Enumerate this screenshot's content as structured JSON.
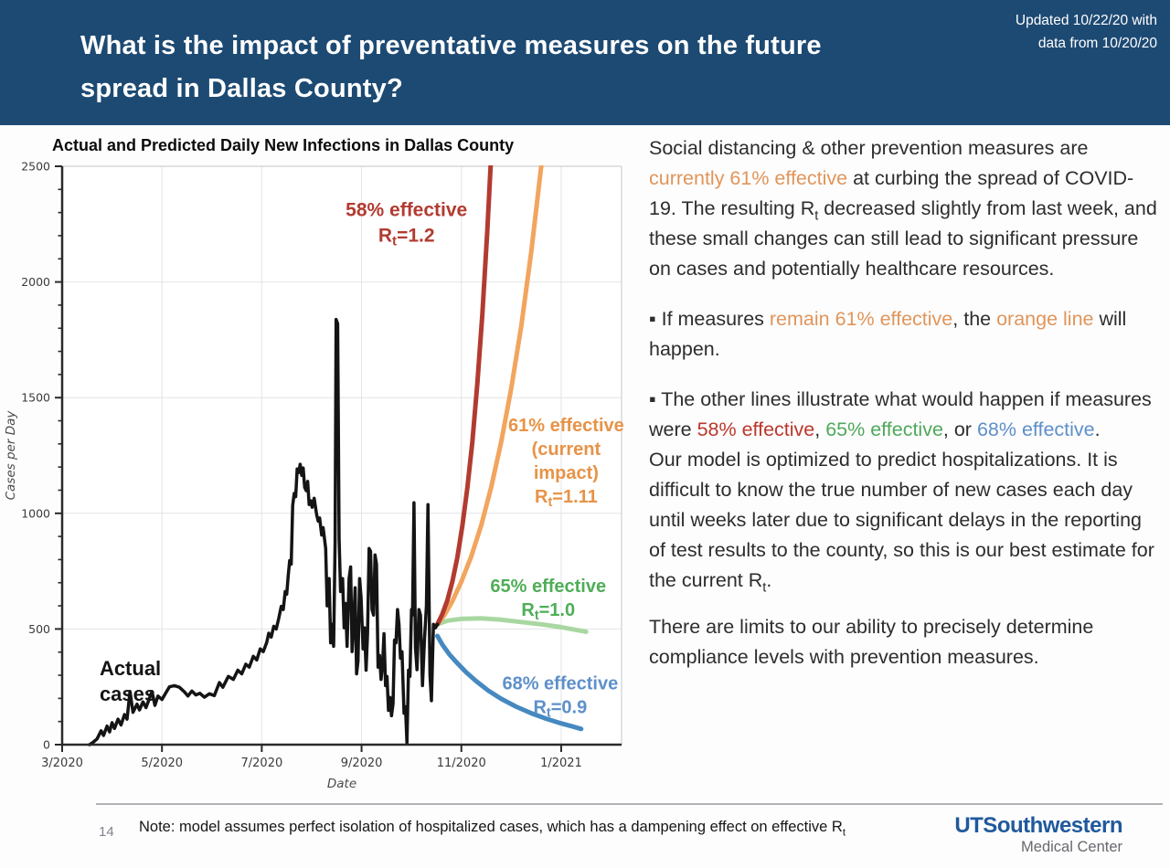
{
  "header": {
    "title": "What is the impact of preventative measures on the future\nspread in Dallas County?",
    "updated": "Updated 10/22/20 with\ndata from 10/20/20",
    "bg_color": "#1d4a73"
  },
  "chart_data": {
    "type": "line",
    "title": "Actual and Predicted Daily New Infections in Dallas County",
    "xlabel": "Date",
    "ylabel": "Cases per Day",
    "x_domain": [
      0,
      11.21
    ],
    "y_domain": [
      0,
      2500
    ],
    "x_ticks": [
      {
        "m": 0,
        "label": "3/2020"
      },
      {
        "m": 2,
        "label": "5/2020"
      },
      {
        "m": 4,
        "label": "7/2020"
      },
      {
        "m": 6,
        "label": "9/2020"
      },
      {
        "m": 8,
        "label": "11/2020"
      },
      {
        "m": 10,
        "label": "1/2021"
      }
    ],
    "y_ticks": [
      0,
      500,
      1000,
      1500,
      2000,
      2500
    ],
    "y_minor_step": 100,
    "grid": true,
    "legend_position": "none",
    "grid_color": "#e4e4e7",
    "axis_color": "#2a2a2a",
    "border_color": "#cfcfd2",
    "series": [
      {
        "name": "65% effective Rt=1.0",
        "color": "#a9d7a1",
        "width": 5,
        "points": [
          [
            7.52,
            520
          ],
          [
            7.72,
            536
          ],
          [
            8.0,
            544
          ],
          [
            8.4,
            546
          ],
          [
            8.8,
            540
          ],
          [
            9.2,
            530
          ],
          [
            9.6,
            520
          ],
          [
            10.0,
            508
          ],
          [
            10.3,
            496
          ],
          [
            10.5,
            488
          ]
        ]
      },
      {
        "name": "68% effective Rt=0.9",
        "color": "#4589c0",
        "width": 5,
        "points": [
          [
            7.52,
            470
          ],
          [
            7.62,
            432
          ],
          [
            7.76,
            390
          ],
          [
            7.92,
            352
          ],
          [
            8.1,
            312
          ],
          [
            8.3,
            274
          ],
          [
            8.55,
            232
          ],
          [
            8.8,
            198
          ],
          [
            9.1,
            164
          ],
          [
            9.4,
            136
          ],
          [
            9.7,
            112
          ],
          [
            10.0,
            92
          ],
          [
            10.2,
            80
          ],
          [
            10.4,
            68
          ]
        ]
      },
      {
        "name": "61% effective (current impact) Rt=1.11",
        "color": "#f2a55e",
        "width": 5,
        "points": [
          [
            7.52,
            520
          ],
          [
            7.66,
            560
          ],
          [
            7.82,
            620
          ],
          [
            8.0,
            705
          ],
          [
            8.2,
            815
          ],
          [
            8.4,
            950
          ],
          [
            8.6,
            1115
          ],
          [
            8.8,
            1310
          ],
          [
            9.0,
            1540
          ],
          [
            9.2,
            1810
          ],
          [
            9.4,
            2130
          ],
          [
            9.6,
            2500
          ],
          [
            9.66,
            2600
          ]
        ]
      },
      {
        "name": "58% effective Rt=1.2",
        "color": "#b23b30",
        "width": 5,
        "points": [
          [
            7.52,
            520
          ],
          [
            7.62,
            565
          ],
          [
            7.72,
            625
          ],
          [
            7.82,
            705
          ],
          [
            7.92,
            810
          ],
          [
            8.02,
            945
          ],
          [
            8.12,
            1110
          ],
          [
            8.22,
            1310
          ],
          [
            8.32,
            1560
          ],
          [
            8.42,
            1860
          ],
          [
            8.52,
            2220
          ],
          [
            8.6,
            2560
          ]
        ]
      },
      {
        "name": "Actual cases",
        "color": "#141414",
        "width": 3.5,
        "points": [
          [
            0.55,
            0
          ],
          [
            0.62,
            10
          ],
          [
            0.7,
            25
          ],
          [
            0.78,
            60
          ],
          [
            0.83,
            40
          ],
          [
            0.9,
            80
          ],
          [
            0.95,
            55
          ],
          [
            1.0,
            95
          ],
          [
            1.05,
            70
          ],
          [
            1.12,
            110
          ],
          [
            1.18,
            85
          ],
          [
            1.25,
            130
          ],
          [
            1.3,
            110
          ],
          [
            1.36,
            230
          ],
          [
            1.42,
            140
          ],
          [
            1.5,
            175
          ],
          [
            1.55,
            150
          ],
          [
            1.62,
            185
          ],
          [
            1.68,
            160
          ],
          [
            1.74,
            195
          ],
          [
            1.8,
            230
          ],
          [
            1.86,
            170
          ],
          [
            1.92,
            210
          ],
          [
            2.0,
            195
          ],
          [
            2.08,
            225
          ],
          [
            2.15,
            250
          ],
          [
            2.25,
            255
          ],
          [
            2.35,
            248
          ],
          [
            2.45,
            228
          ],
          [
            2.52,
            210
          ],
          [
            2.6,
            232
          ],
          [
            2.68,
            215
          ],
          [
            2.76,
            222
          ],
          [
            2.85,
            205
          ],
          [
            2.95,
            220
          ],
          [
            3.05,
            212
          ],
          [
            3.15,
            268
          ],
          [
            3.22,
            248
          ],
          [
            3.33,
            295
          ],
          [
            3.43,
            282
          ],
          [
            3.52,
            322
          ],
          [
            3.6,
            306
          ],
          [
            3.68,
            348
          ],
          [
            3.75,
            335
          ],
          [
            3.83,
            382
          ],
          [
            3.9,
            366
          ],
          [
            3.97,
            414
          ],
          [
            4.03,
            402
          ],
          [
            4.1,
            442
          ],
          [
            4.14,
            482
          ],
          [
            4.19,
            465
          ],
          [
            4.24,
            512
          ],
          [
            4.29,
            500
          ],
          [
            4.34,
            545
          ],
          [
            4.39,
            598
          ],
          [
            4.43,
            584
          ],
          [
            4.47,
            662
          ],
          [
            4.5,
            650
          ],
          [
            4.53,
            730
          ],
          [
            4.56,
            796
          ],
          [
            4.59,
            780
          ],
          [
            4.62,
            1034
          ],
          [
            4.65,
            1086
          ],
          [
            4.68,
            1072
          ],
          [
            4.71,
            1192
          ],
          [
            4.74,
            1176
          ],
          [
            4.77,
            1212
          ],
          [
            4.8,
            1164
          ],
          [
            4.83,
            1196
          ],
          [
            4.86,
            1112
          ],
          [
            4.89,
            1098
          ],
          [
            4.92,
            1138
          ],
          [
            4.95,
            1038
          ],
          [
            4.98,
            1054
          ],
          [
            5.01,
            1026
          ],
          [
            5.05,
            1065
          ],
          [
            5.1,
            994
          ],
          [
            5.13,
            966
          ],
          [
            5.16,
            980
          ],
          [
            5.2,
            906
          ],
          [
            5.23,
            938
          ],
          [
            5.28,
            848
          ],
          [
            5.31,
            600
          ],
          [
            5.35,
            718
          ],
          [
            5.38,
            440
          ],
          [
            5.41,
            520
          ],
          [
            5.44,
            425
          ],
          [
            5.47,
            875
          ],
          [
            5.49,
            1838
          ],
          [
            5.52,
            1820
          ],
          [
            5.55,
            888
          ],
          [
            5.58,
            662
          ],
          [
            5.62,
            718
          ],
          [
            5.65,
            505
          ],
          [
            5.68,
            610
          ],
          [
            5.71,
            425
          ],
          [
            5.75,
            718
          ],
          [
            5.78,
            768
          ],
          [
            5.81,
            402
          ],
          [
            5.84,
            520
          ],
          [
            5.87,
            678
          ],
          [
            5.9,
            306
          ],
          [
            5.93,
            362
          ],
          [
            5.96,
            718
          ],
          [
            5.99,
            638
          ],
          [
            6.03,
            414
          ],
          [
            6.06,
            505
          ],
          [
            6.09,
            322
          ],
          [
            6.12,
            480
          ],
          [
            6.15,
            848
          ],
          [
            6.18,
            836
          ],
          [
            6.21,
            584
          ],
          [
            6.24,
            560
          ],
          [
            6.27,
            820
          ],
          [
            6.3,
            780
          ],
          [
            6.33,
            335
          ],
          [
            6.36,
            386
          ],
          [
            6.39,
            282
          ],
          [
            6.42,
            346
          ],
          [
            6.45,
            480
          ],
          [
            6.48,
            255
          ],
          [
            6.51,
            295
          ],
          [
            6.54,
            148
          ],
          [
            6.57,
            204
          ],
          [
            6.6,
            125
          ],
          [
            6.63,
            176
          ],
          [
            6.66,
            452
          ],
          [
            6.69,
            440
          ],
          [
            6.72,
            584
          ],
          [
            6.75,
            520
          ],
          [
            6.78,
            374
          ],
          [
            6.81,
            402
          ],
          [
            6.85,
            136
          ],
          [
            6.88,
            164
          ],
          [
            6.91,
            8
          ],
          [
            6.94,
            322
          ],
          [
            6.97,
            295
          ],
          [
            7.0,
            584
          ],
          [
            7.02,
            560
          ],
          [
            7.05,
            1046
          ],
          [
            7.08,
            420
          ],
          [
            7.11,
            324
          ],
          [
            7.15,
            584
          ],
          [
            7.18,
            560
          ],
          [
            7.22,
            255
          ],
          [
            7.26,
            454
          ],
          [
            7.3,
            600
          ],
          [
            7.33,
            1038
          ],
          [
            7.37,
            300
          ],
          [
            7.4,
            190
          ],
          [
            7.44,
            520
          ],
          [
            7.48,
            505
          ],
          [
            7.52,
            520
          ]
        ]
      }
    ],
    "annotations": [
      {
        "lines": [
          "Actual",
          "cases"
        ],
        "color": "#141414",
        "m": 0.75,
        "c": 300,
        "anchor": "start",
        "size": 22,
        "lh": 28
      },
      {
        "lines": [
          "58% effective",
          "R[t]=1.2"
        ],
        "color": "#b23b30",
        "m": 6.9,
        "c": 2285,
        "anchor": "middle",
        "size": 21,
        "lh": 28
      },
      {
        "lines": [
          "61% effective",
          "(current",
          "impact)",
          "R[t]=1.11"
        ],
        "color": "#e79347",
        "m": 10.1,
        "c": 1355,
        "anchor": "middle",
        "size": 20,
        "lh": 26
      },
      {
        "lines": [
          "65% effective",
          "R[t]=1.0"
        ],
        "color": "#4fae57",
        "m": 9.74,
        "c": 660,
        "anchor": "middle",
        "size": 20,
        "lh": 26
      },
      {
        "lines": [
          "68% effective",
          "R[t]=0.9"
        ],
        "color": "#5d90ca",
        "m": 9.98,
        "c": 238,
        "anchor": "middle",
        "size": 20,
        "lh": 26
      }
    ]
  },
  "panel": {
    "colors": {
      "text": "#2d2d2d",
      "orange": "#e0955a",
      "red": "#bb372a",
      "green": "#4fa85a",
      "blue": "#5d8fc9"
    },
    "paragraphs": [
      {
        "runs": [
          {
            "t": "Social distancing & other prevention measures are ",
            "c": "text"
          },
          {
            "t": "currently 61% effective",
            "c": "orange"
          },
          {
            "t": " at curbing the spread of COVID-19. The resulting R[t] decreased slightly from last week, and these small changes can still lead to significant pressure on cases and potentially healthcare resources.",
            "c": "text"
          }
        ]
      },
      {
        "runs": [
          {
            "t": "▪ If measures ",
            "c": "text"
          },
          {
            "t": "remain 61% effective",
            "c": "orange"
          },
          {
            "t": ", the ",
            "c": "text"
          },
          {
            "t": "orange line",
            "c": "orange"
          },
          {
            "t": " will happen.",
            "c": "text"
          }
        ]
      },
      {
        "runs": [
          {
            "t": "▪ The other lines illustrate what would happen if measures were ",
            "c": "text"
          },
          {
            "t": "58% effective",
            "c": "red"
          },
          {
            "t": ", ",
            "c": "text"
          },
          {
            "t": "65% effective",
            "c": "green"
          },
          {
            "t": ", or ",
            "c": "text"
          },
          {
            "t": "68% effective",
            "c": "blue"
          },
          {
            "t": ".",
            "c": "text"
          }
        ]
      },
      {
        "runs": [
          {
            "t": "Our model is optimized to predict hospitalizations. It is difficult to know the true number of new cases each day until weeks later due to significant delays in the reporting of test results to the county, so this is our best estimate for the current R[t].",
            "c": "text"
          }
        ]
      },
      {
        "runs": [
          {
            "t": "There are limits to our ability to precisely determine compliance levels with prevention measures.",
            "c": "text"
          }
        ]
      }
    ]
  },
  "footer": {
    "page_number": "14",
    "note_runs": [
      {
        "t": "Note: model assumes perfect isolation of hospitalized cases, which has a dampening effect on effective R[t]",
        "c": "text"
      }
    ],
    "logo_line1": "UTSouthwestern",
    "logo_line2": "Medical Center"
  }
}
